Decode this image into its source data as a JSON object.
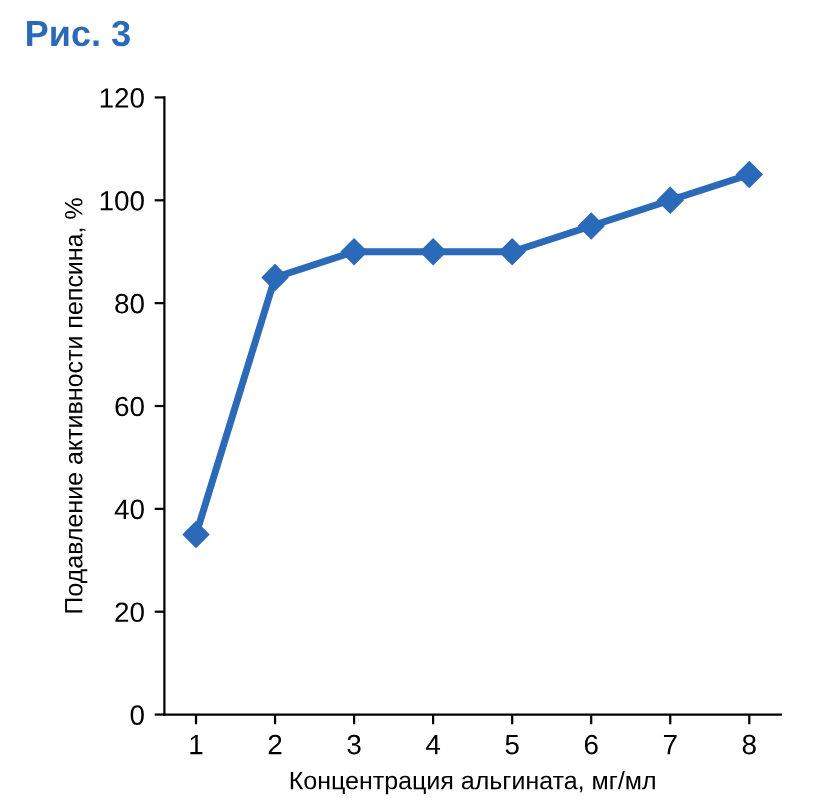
{
  "chart_data": {
    "type": "line",
    "title": "Рис. 3",
    "xlabel": "Концентрация альгината, мг/мл",
    "ylabel": "Подавление активности пепсина, %",
    "categories": [
      "1",
      "2",
      "3",
      "4",
      "5",
      "6",
      "7",
      "8"
    ],
    "series": [
      {
        "color": "#2a6ab8",
        "values": [
          35,
          85,
          90,
          90,
          90,
          95,
          100,
          105
        ]
      }
    ],
    "ylim": [
      0,
      120
    ],
    "yticks": [
      0,
      20,
      40,
      60,
      80,
      100,
      120
    ],
    "grid": false,
    "legend": false,
    "marker": "diamond",
    "line_style": "solid"
  }
}
